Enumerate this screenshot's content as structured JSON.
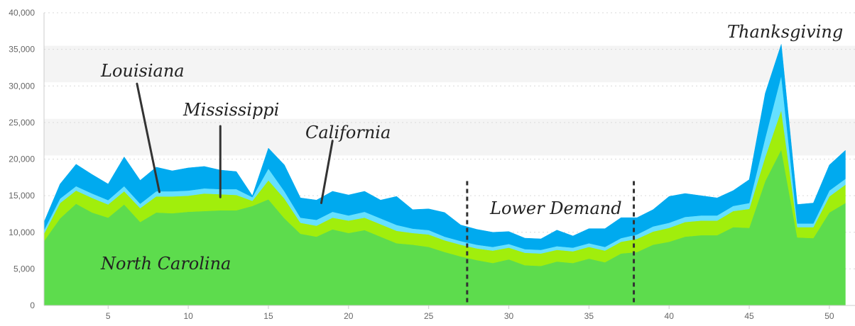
{
  "chart_data": {
    "type": "area",
    "stacked": true,
    "x": [
      1,
      2,
      3,
      4,
      5,
      6,
      7,
      8,
      9,
      10,
      11,
      12,
      13,
      14,
      15,
      16,
      17,
      18,
      19,
      20,
      21,
      22,
      23,
      24,
      25,
      26,
      27,
      28,
      29,
      30,
      31,
      32,
      33,
      34,
      35,
      36,
      37,
      38,
      39,
      40,
      41,
      42,
      43,
      44,
      45,
      46,
      47,
      48,
      49,
      50,
      51
    ],
    "xticks": [
      5,
      10,
      15,
      20,
      25,
      30,
      35,
      40,
      45,
      50
    ],
    "xlim": [
      1,
      51.6
    ],
    "ylim": [
      0,
      40000
    ],
    "yticks": [
      0,
      5000,
      10000,
      15000,
      20000,
      25000,
      30000,
      35000,
      40000
    ],
    "ytick_labels": [
      "0",
      "5,000",
      "10,000",
      "15,000",
      "20,000",
      "25,000",
      "30,000",
      "35,000",
      "40,000"
    ],
    "grid": true,
    "band_ranges": [
      [
        20500,
        25500
      ],
      [
        30500,
        35500
      ]
    ],
    "series": [
      {
        "color": "#5ddc4d",
        "values": [
          8800,
          11900,
          13900,
          12700,
          12000,
          13800,
          11400,
          12700,
          12600,
          12800,
          12900,
          13000,
          13000,
          13600,
          14500,
          11900,
          9800,
          9400,
          10400,
          9900,
          10300,
          9400,
          8500,
          8300,
          8000,
          7300,
          6700,
          6200,
          5800,
          6300,
          5500,
          5400,
          6000,
          5800,
          6400,
          5900,
          7100,
          7300,
          8300,
          8700,
          9400,
          9600,
          9600,
          10700,
          10600,
          17000,
          21300,
          9300,
          9200,
          12700,
          14000
        ]
      },
      {
        "color": "#a1ee0c",
        "values": [
          1000,
          2100,
          1800,
          2000,
          1800,
          1800,
          1900,
          2200,
          2300,
          2200,
          2400,
          2200,
          2100,
          700,
          2600,
          2700,
          1500,
          1500,
          1600,
          1700,
          1700,
          1700,
          1700,
          1600,
          1700,
          1600,
          1600,
          1600,
          1700,
          1600,
          1700,
          1700,
          1600,
          1600,
          1600,
          1600,
          1600,
          1800,
          1800,
          1900,
          2000,
          2000,
          2000,
          2200,
          2600,
          3300,
          5400,
          1400,
          1500,
          2200,
          2500
        ]
      },
      {
        "color": "#66e0ff",
        "values": [
          500,
          600,
          600,
          600,
          600,
          700,
          600,
          700,
          700,
          700,
          700,
          700,
          800,
          500,
          1600,
          1000,
          700,
          800,
          800,
          700,
          800,
          800,
          800,
          600,
          600,
          500,
          500,
          500,
          500,
          500,
          500,
          500,
          500,
          500,
          500,
          500,
          500,
          600,
          700,
          700,
          700,
          700,
          700,
          700,
          800,
          2600,
          4700,
          500,
          500,
          800,
          800
        ]
      },
      {
        "color": "#00aaef",
        "values": [
          1100,
          2000,
          3000,
          2600,
          2200,
          4000,
          3200,
          3300,
          2800,
          3100,
          3000,
          2600,
          2400,
          200,
          2800,
          3600,
          2700,
          2700,
          2800,
          2800,
          2800,
          2500,
          3900,
          2600,
          2900,
          3300,
          2200,
          2100,
          2000,
          1700,
          1500,
          1500,
          2200,
          1600,
          2000,
          2500,
          2800,
          2300,
          2300,
          3600,
          3200,
          2700,
          2400,
          2100,
          3200,
          6100,
          4300,
          2600,
          2800,
          3500,
          3900
        ]
      }
    ],
    "annotations": [
      {
        "text": "Louisiana"
      },
      {
        "text": "Mississippi"
      },
      {
        "text": "California"
      },
      {
        "text": "North Carolina"
      },
      {
        "text": "Lower Demand"
      },
      {
        "text": "Thanksgiving"
      }
    ],
    "leader_lines": [
      {
        "from": [
          6.8,
          30300
        ],
        "to": [
          8.2,
          15500
        ]
      },
      {
        "from": [
          12.0,
          24500
        ],
        "to": [
          12.0,
          14800
        ]
      },
      {
        "from": [
          19.0,
          22500
        ],
        "to": [
          18.3,
          14000
        ]
      }
    ],
    "divider_lines": [
      27.4,
      37.8
    ]
  }
}
